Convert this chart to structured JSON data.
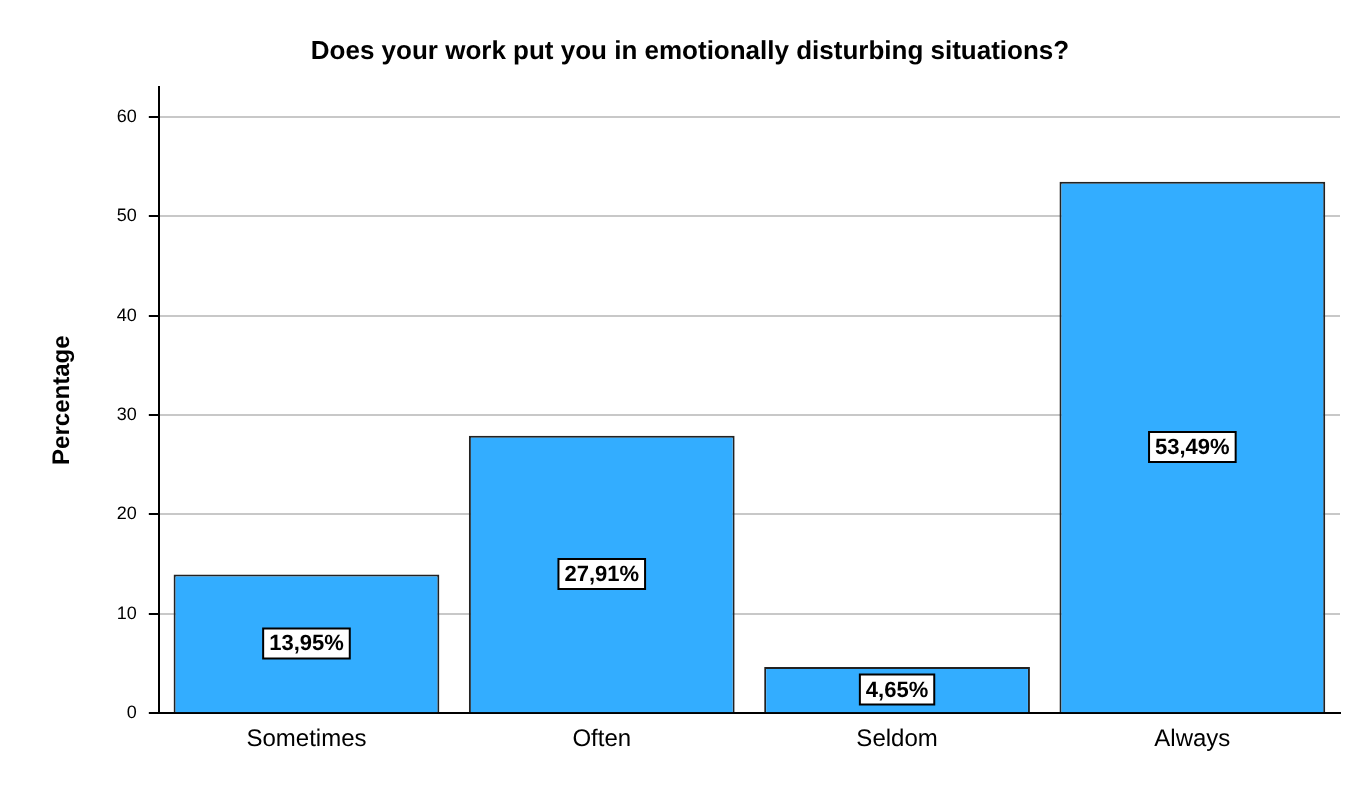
{
  "chart_data": {
    "type": "bar",
    "title": "Does your work put you in emotionally disturbing situations?",
    "ylabel": "Percentage",
    "categories": [
      "Sometimes",
      "Often",
      "Seldom",
      "Always"
    ],
    "values": [
      13.95,
      27.91,
      4.65,
      53.49
    ],
    "value_labels": [
      "13,95%",
      "27,91%",
      "4,65%",
      "53,49%"
    ],
    "color": "#33adff",
    "ylim": [
      0,
      63
    ],
    "yticks": [
      0,
      10,
      20,
      30,
      40,
      50,
      60
    ],
    "grid": "y"
  }
}
